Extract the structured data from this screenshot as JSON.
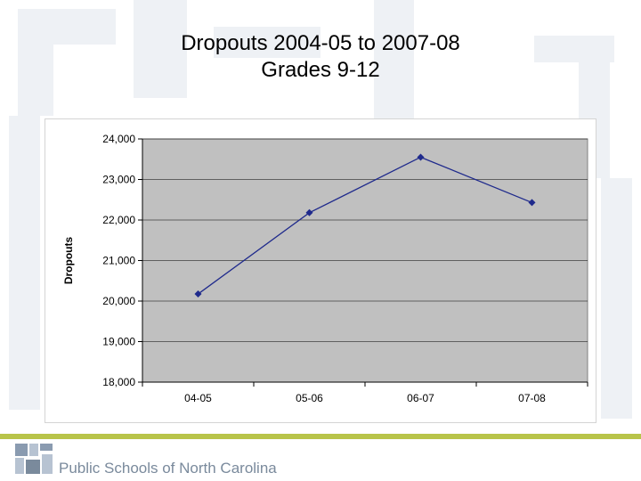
{
  "slide": {
    "title_line1": "Dropouts 2004-05 to 2007-08",
    "title_line2": "Grades 9-12",
    "footer_text": "Public Schools of North Carolina"
  },
  "colors": {
    "plot_background": "#c0c0c0",
    "series_line": "#1f2a8c",
    "gridline": "#000000",
    "footer_band": "#b8c44a",
    "footer_text": "#7a8a9c"
  },
  "chart_data": {
    "type": "line",
    "title": "",
    "xlabel": "",
    "ylabel": "Dropouts",
    "categories": [
      "04-05",
      "05-06",
      "06-07",
      "07-08"
    ],
    "series": [
      {
        "values": [
          20175,
          22180,
          23550,
          22430
        ]
      }
    ],
    "ylim": [
      18000,
      24000
    ],
    "y_ticks": [
      18000,
      19000,
      20000,
      21000,
      22000,
      23000,
      24000
    ],
    "y_tick_labels": [
      "18,000",
      "19,000",
      "20,000",
      "21,000",
      "22,000",
      "23,000",
      "24,000"
    ],
    "grid": true,
    "legend": "none"
  }
}
